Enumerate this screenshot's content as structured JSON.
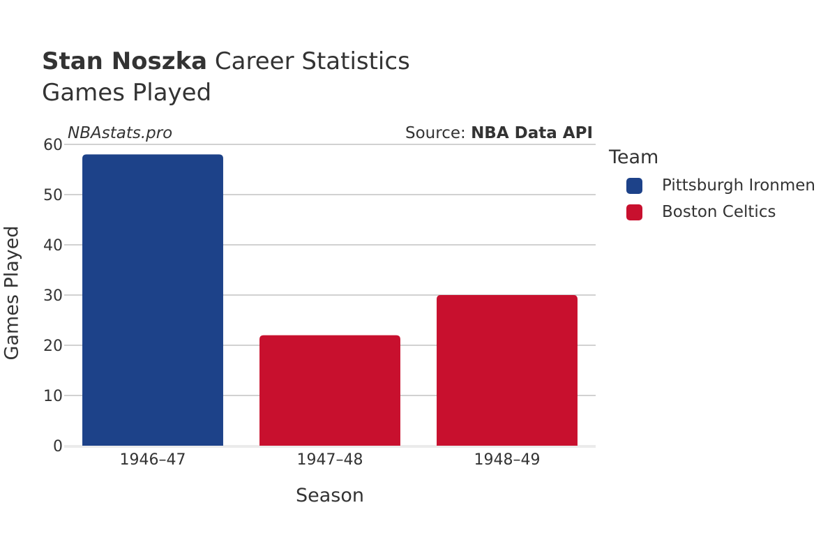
{
  "header": {
    "title_bold": "Stan Noszka",
    "title_rest": " Career Statistics",
    "subtitle": "Games Played",
    "watermark": "NBAstats.pro",
    "source_prefix": "Source: ",
    "source_name": "NBA Data API"
  },
  "legend": {
    "title": "Team",
    "items": [
      {
        "label": "Pittsburgh Ironmen",
        "color": "#1d4289"
      },
      {
        "label": "Boston Celtics",
        "color": "#c8102e"
      }
    ]
  },
  "chart_data": {
    "type": "bar",
    "categories": [
      "1946–47",
      "1947–48",
      "1948–49"
    ],
    "values": [
      58,
      22,
      30
    ],
    "bar_teams": [
      "Pittsburgh Ironmen",
      "Boston Celtics",
      "Boston Celtics"
    ],
    "bar_colors": [
      "#1d4289",
      "#c8102e",
      "#c8102e"
    ],
    "xlabel": "Season",
    "ylabel": "Games Played",
    "ylim": [
      0,
      60
    ],
    "yticks": [
      0,
      10,
      20,
      30,
      40,
      50,
      60
    ],
    "grid": true,
    "legend_position": "right"
  }
}
